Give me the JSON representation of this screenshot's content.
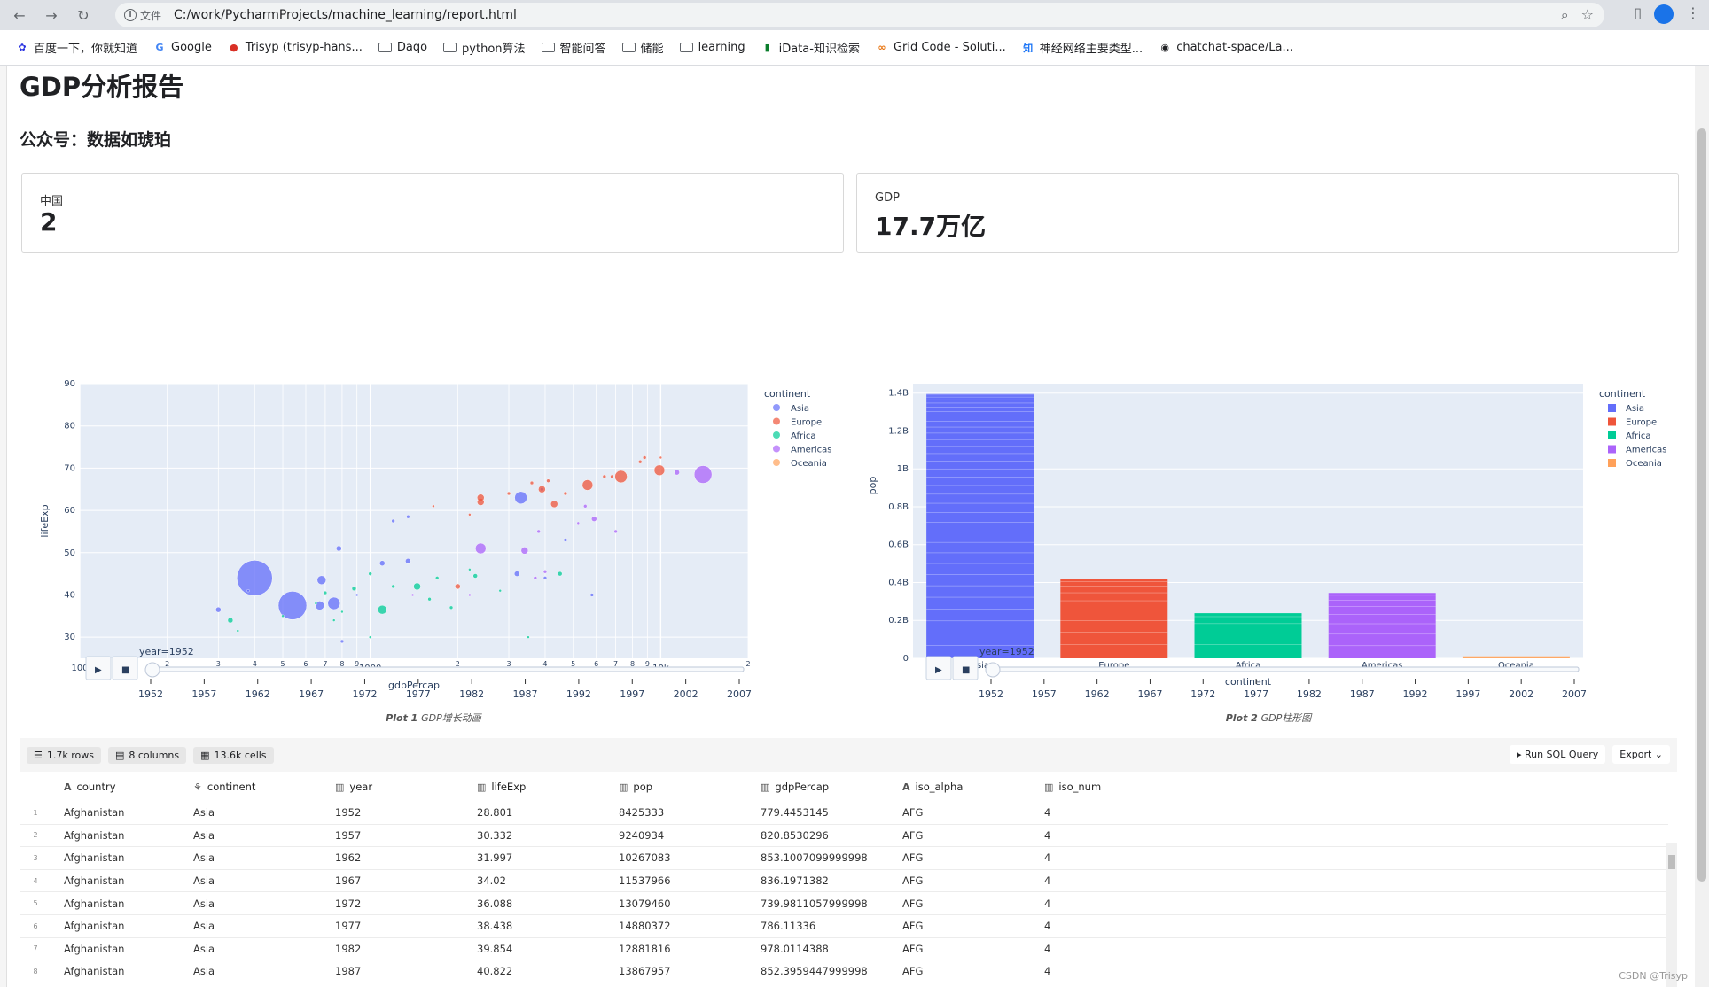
{
  "browser": {
    "info_label": "文件",
    "url": "C:/work/PycharmProjects/machine_learning/report.html",
    "bookmarks": [
      {
        "label": "百度一下，你就知道",
        "icon": "baidu-icon"
      },
      {
        "label": "Google",
        "icon": "google-icon"
      },
      {
        "label": "Trisyp (trisyp-hans...",
        "icon": "site-icon"
      },
      {
        "label": "Daqo",
        "icon": "folder-icon"
      },
      {
        "label": "python算法",
        "icon": "folder-icon"
      },
      {
        "label": "智能问答",
        "icon": "folder-icon"
      },
      {
        "label": "储能",
        "icon": "folder-icon"
      },
      {
        "label": "learning",
        "icon": "folder-icon"
      },
      {
        "label": "iData-知识检索",
        "icon": "idata-icon"
      },
      {
        "label": "Grid Code - Soluti...",
        "icon": "elap-icon"
      },
      {
        "label": "神经网络主要类型...",
        "icon": "zhihu-icon"
      },
      {
        "label": "chatchat-space/La...",
        "icon": "github-icon"
      }
    ]
  },
  "report": {
    "title": "GDP分析报告",
    "subtitle": "公众号：数据如琥珀",
    "metrics": [
      {
        "label": "中国",
        "value": "2"
      },
      {
        "label": "GDP",
        "value": "17.7万亿"
      }
    ]
  },
  "colors": {
    "Asia": "#636efa",
    "Europe": "#ef553b",
    "Africa": "#00cc96",
    "Americas": "#ab63fa",
    "Oceania": "#ffa15a",
    "plot_bg": "#e5ecf6"
  },
  "slider": {
    "label": "year=1952",
    "ticks": [
      "1952",
      "1957",
      "1962",
      "1967",
      "1972",
      "1977",
      "1982",
      "1987",
      "1992",
      "1997",
      "2002",
      "2007"
    ]
  },
  "chart_data": [
    {
      "type": "scatter",
      "caption_bold": "Plot 1",
      "caption": "GDP增长动画",
      "xlabel": "gdpPercap",
      "ylabel": "lifeExp",
      "x_scale": "log",
      "xlim": [
        100,
        20000
      ],
      "ylim": [
        25,
        90
      ],
      "x_tick_labels": [
        {
          "v": 100,
          "t": "100"
        },
        {
          "v": 200,
          "t": "2"
        },
        {
          "v": 300,
          "t": "3"
        },
        {
          "v": 400,
          "t": "4"
        },
        {
          "v": 500,
          "t": "5"
        },
        {
          "v": 600,
          "t": "6"
        },
        {
          "v": 700,
          "t": "7"
        },
        {
          "v": 800,
          "t": "8"
        },
        {
          "v": 900,
          "t": "9"
        },
        {
          "v": 1000,
          "t": "1000"
        },
        {
          "v": 2000,
          "t": "2"
        },
        {
          "v": 3000,
          "t": "3"
        },
        {
          "v": 4000,
          "t": "4"
        },
        {
          "v": 5000,
          "t": "5"
        },
        {
          "v": 6000,
          "t": "6"
        },
        {
          "v": 7000,
          "t": "7"
        },
        {
          "v": 8000,
          "t": "8"
        },
        {
          "v": 9000,
          "t": "9"
        },
        {
          "v": 10000,
          "t": "10k"
        },
        {
          "v": 20000,
          "t": "2"
        }
      ],
      "y_ticks": [
        30,
        40,
        50,
        60,
        70,
        80,
        90
      ],
      "legend_title": "continent",
      "legend_placement": "right",
      "points": [
        {
          "x": 400,
          "y": 44,
          "r": 20,
          "c": "Asia"
        },
        {
          "x": 540,
          "y": 37.5,
          "r": 16,
          "c": "Asia"
        },
        {
          "x": 680,
          "y": 43.5,
          "r": 5,
          "c": "Asia"
        },
        {
          "x": 750,
          "y": 38,
          "r": 7,
          "c": "Asia"
        },
        {
          "x": 670,
          "y": 37.5,
          "r": 5,
          "c": "Asia"
        },
        {
          "x": 780,
          "y": 51,
          "r": 3,
          "c": "Asia"
        },
        {
          "x": 300,
          "y": 36.5,
          "r": 3,
          "c": "Asia"
        },
        {
          "x": 1100,
          "y": 47.5,
          "r": 3,
          "c": "Asia"
        },
        {
          "x": 1350,
          "y": 48,
          "r": 3,
          "c": "Asia"
        },
        {
          "x": 1200,
          "y": 57.5,
          "r": 2,
          "c": "Asia"
        },
        {
          "x": 1350,
          "y": 58.5,
          "r": 2,
          "c": "Asia"
        },
        {
          "x": 3300,
          "y": 63,
          "r": 7,
          "c": "Asia"
        },
        {
          "x": 3200,
          "y": 45,
          "r": 3,
          "c": "Asia"
        },
        {
          "x": 4700,
          "y": 53,
          "r": 2,
          "c": "Asia"
        },
        {
          "x": 4000,
          "y": 44,
          "r": 2,
          "c": "Asia"
        },
        {
          "x": 5800,
          "y": 40,
          "r": 2,
          "c": "Asia"
        },
        {
          "x": 800,
          "y": 29,
          "r": 2,
          "c": "Asia"
        },
        {
          "x": 3900,
          "y": 65,
          "r": 2,
          "c": "Asia"
        },
        {
          "x": 380,
          "y": 41,
          "r": 1.5,
          "c": "Asia"
        },
        {
          "x": 900,
          "y": 40,
          "r": 1.5,
          "c": "Asia"
        },
        {
          "x": 2400,
          "y": 62,
          "r": 4,
          "c": "Europe"
        },
        {
          "x": 2400,
          "y": 63,
          "r": 4,
          "c": "Europe"
        },
        {
          "x": 3900,
          "y": 65,
          "r": 4,
          "c": "Europe"
        },
        {
          "x": 4300,
          "y": 61.5,
          "r": 4,
          "c": "Europe"
        },
        {
          "x": 5600,
          "y": 66,
          "r": 6,
          "c": "Europe"
        },
        {
          "x": 7300,
          "y": 68,
          "r": 7,
          "c": "Europe"
        },
        {
          "x": 9900,
          "y": 69.5,
          "r": 6,
          "c": "Europe"
        },
        {
          "x": 8500,
          "y": 71.5,
          "r": 2,
          "c": "Europe"
        },
        {
          "x": 8800,
          "y": 72.5,
          "r": 2,
          "c": "Europe"
        },
        {
          "x": 10000,
          "y": 72.5,
          "r": 1.5,
          "c": "Europe"
        },
        {
          "x": 6400,
          "y": 68,
          "r": 2,
          "c": "Europe"
        },
        {
          "x": 6800,
          "y": 68,
          "r": 2,
          "c": "Europe"
        },
        {
          "x": 2000,
          "y": 42,
          "r": 3,
          "c": "Europe"
        },
        {
          "x": 3600,
          "y": 66.5,
          "r": 2,
          "c": "Europe"
        },
        {
          "x": 4100,
          "y": 67,
          "r": 2,
          "c": "Europe"
        },
        {
          "x": 4700,
          "y": 64,
          "r": 2,
          "c": "Europe"
        },
        {
          "x": 1650,
          "y": 61,
          "r": 1.5,
          "c": "Europe"
        },
        {
          "x": 2200,
          "y": 59,
          "r": 1.5,
          "c": "Europe"
        },
        {
          "x": 3000,
          "y": 64,
          "r": 2,
          "c": "Europe"
        },
        {
          "x": 1100,
          "y": 36.5,
          "r": 5,
          "c": "Africa"
        },
        {
          "x": 1450,
          "y": 42,
          "r": 4,
          "c": "Africa"
        },
        {
          "x": 330,
          "y": 34,
          "r": 3,
          "c": "Africa"
        },
        {
          "x": 880,
          "y": 41.5,
          "r": 2.5,
          "c": "Africa"
        },
        {
          "x": 1000,
          "y": 45,
          "r": 2,
          "c": "Africa"
        },
        {
          "x": 1200,
          "y": 42,
          "r": 2,
          "c": "Africa"
        },
        {
          "x": 1600,
          "y": 39,
          "r": 2,
          "c": "Africa"
        },
        {
          "x": 1900,
          "y": 37,
          "r": 2,
          "c": "Africa"
        },
        {
          "x": 1700,
          "y": 44,
          "r": 2,
          "c": "Africa"
        },
        {
          "x": 2300,
          "y": 44.5,
          "r": 2.5,
          "c": "Africa"
        },
        {
          "x": 4500,
          "y": 45,
          "r": 2.5,
          "c": "Africa"
        },
        {
          "x": 3500,
          "y": 30,
          "r": 1.5,
          "c": "Africa"
        },
        {
          "x": 700,
          "y": 40.5,
          "r": 2,
          "c": "Africa"
        },
        {
          "x": 650,
          "y": 38,
          "r": 1.5,
          "c": "Africa"
        },
        {
          "x": 500,
          "y": 35,
          "r": 1.5,
          "c": "Africa"
        },
        {
          "x": 800,
          "y": 36,
          "r": 1.5,
          "c": "Africa"
        },
        {
          "x": 350,
          "y": 31.5,
          "r": 1.5,
          "c": "Africa"
        },
        {
          "x": 2200,
          "y": 46,
          "r": 1.5,
          "c": "Africa"
        },
        {
          "x": 2800,
          "y": 41,
          "r": 1.5,
          "c": "Africa"
        },
        {
          "x": 750,
          "y": 34,
          "r": 1.5,
          "c": "Africa"
        },
        {
          "x": 1000,
          "y": 30,
          "r": 1.5,
          "c": "Africa"
        },
        {
          "x": 2400,
          "y": 51,
          "r": 6,
          "c": "Americas"
        },
        {
          "x": 3400,
          "y": 50.5,
          "r": 4,
          "c": "Americas"
        },
        {
          "x": 13990,
          "y": 68.5,
          "r": 10,
          "c": "Americas"
        },
        {
          "x": 11370,
          "y": 69,
          "r": 3,
          "c": "Americas"
        },
        {
          "x": 5900,
          "y": 58,
          "r": 3,
          "c": "Americas"
        },
        {
          "x": 5500,
          "y": 61,
          "r": 2,
          "c": "Americas"
        },
        {
          "x": 3800,
          "y": 55,
          "r": 2,
          "c": "Americas"
        },
        {
          "x": 3700,
          "y": 44,
          "r": 2,
          "c": "Americas"
        },
        {
          "x": 4000,
          "y": 45.5,
          "r": 2,
          "c": "Americas"
        },
        {
          "x": 7000,
          "y": 55,
          "r": 2,
          "c": "Americas"
        },
        {
          "x": 2200,
          "y": 40,
          "r": 1.5,
          "c": "Americas"
        },
        {
          "x": 5200,
          "y": 57,
          "r": 1.5,
          "c": "Americas"
        },
        {
          "x": 1400,
          "y": 40,
          "r": 1.5,
          "c": "Americas"
        }
      ]
    },
    {
      "type": "bar",
      "stacked": true,
      "caption_bold": "Plot 2",
      "caption": "GDP柱形图",
      "xlabel": "continent",
      "ylabel": "pop",
      "ylim": [
        0,
        1.45
      ],
      "y_unit": "B",
      "y_ticks": [
        {
          "v": 0,
          "t": "0"
        },
        {
          "v": 0.2,
          "t": "0.2B"
        },
        {
          "v": 0.4,
          "t": "0.4B"
        },
        {
          "v": 0.6,
          "t": "0.6B"
        },
        {
          "v": 0.8,
          "t": "0.8B"
        },
        {
          "v": 1.0,
          "t": "1B"
        },
        {
          "v": 1.2,
          "t": "1.2B"
        },
        {
          "v": 1.4,
          "t": "1.4B"
        }
      ],
      "legend_title": "continent",
      "legend_placement": "right",
      "categories": [
        "Asia",
        "Europe",
        "Africa",
        "Americas",
        "Oceania"
      ],
      "values": [
        1.395,
        0.418,
        0.238,
        0.345,
        0.011
      ]
    }
  ],
  "table": {
    "chips": [
      "1.7k rows",
      "8 columns",
      "13.6k cells"
    ],
    "run_sql": "Run SQL Query",
    "export": "Export",
    "columns": [
      {
        "name": "country",
        "icon": "A"
      },
      {
        "name": "continent",
        "icon": "⚘"
      },
      {
        "name": "year",
        "icon": "▥"
      },
      {
        "name": "lifeExp",
        "icon": "▥"
      },
      {
        "name": "pop",
        "icon": "▥"
      },
      {
        "name": "gdpPercap",
        "icon": "▥"
      },
      {
        "name": "iso_alpha",
        "icon": "A"
      },
      {
        "name": "iso_num",
        "icon": "▥"
      }
    ],
    "rows": [
      [
        "1",
        "Afghanistan",
        "Asia",
        "1952",
        "28.801",
        "8425333",
        "779.4453145",
        "AFG",
        "4"
      ],
      [
        "2",
        "Afghanistan",
        "Asia",
        "1957",
        "30.332",
        "9240934",
        "820.8530296",
        "AFG",
        "4"
      ],
      [
        "3",
        "Afghanistan",
        "Asia",
        "1962",
        "31.997",
        "10267083",
        "853.1007099999998",
        "AFG",
        "4"
      ],
      [
        "4",
        "Afghanistan",
        "Asia",
        "1967",
        "34.02",
        "11537966",
        "836.1971382",
        "AFG",
        "4"
      ],
      [
        "5",
        "Afghanistan",
        "Asia",
        "1972",
        "36.088",
        "13079460",
        "739.9811057999998",
        "AFG",
        "4"
      ],
      [
        "6",
        "Afghanistan",
        "Asia",
        "1977",
        "38.438",
        "14880372",
        "786.11336",
        "AFG",
        "4"
      ],
      [
        "7",
        "Afghanistan",
        "Asia",
        "1982",
        "39.854",
        "12881816",
        "978.0114388",
        "AFG",
        "4"
      ],
      [
        "8",
        "Afghanistan",
        "Asia",
        "1987",
        "40.822",
        "13867957",
        "852.3959447999998",
        "AFG",
        "4"
      ]
    ]
  },
  "watermark": "CSDN @Trisyp"
}
